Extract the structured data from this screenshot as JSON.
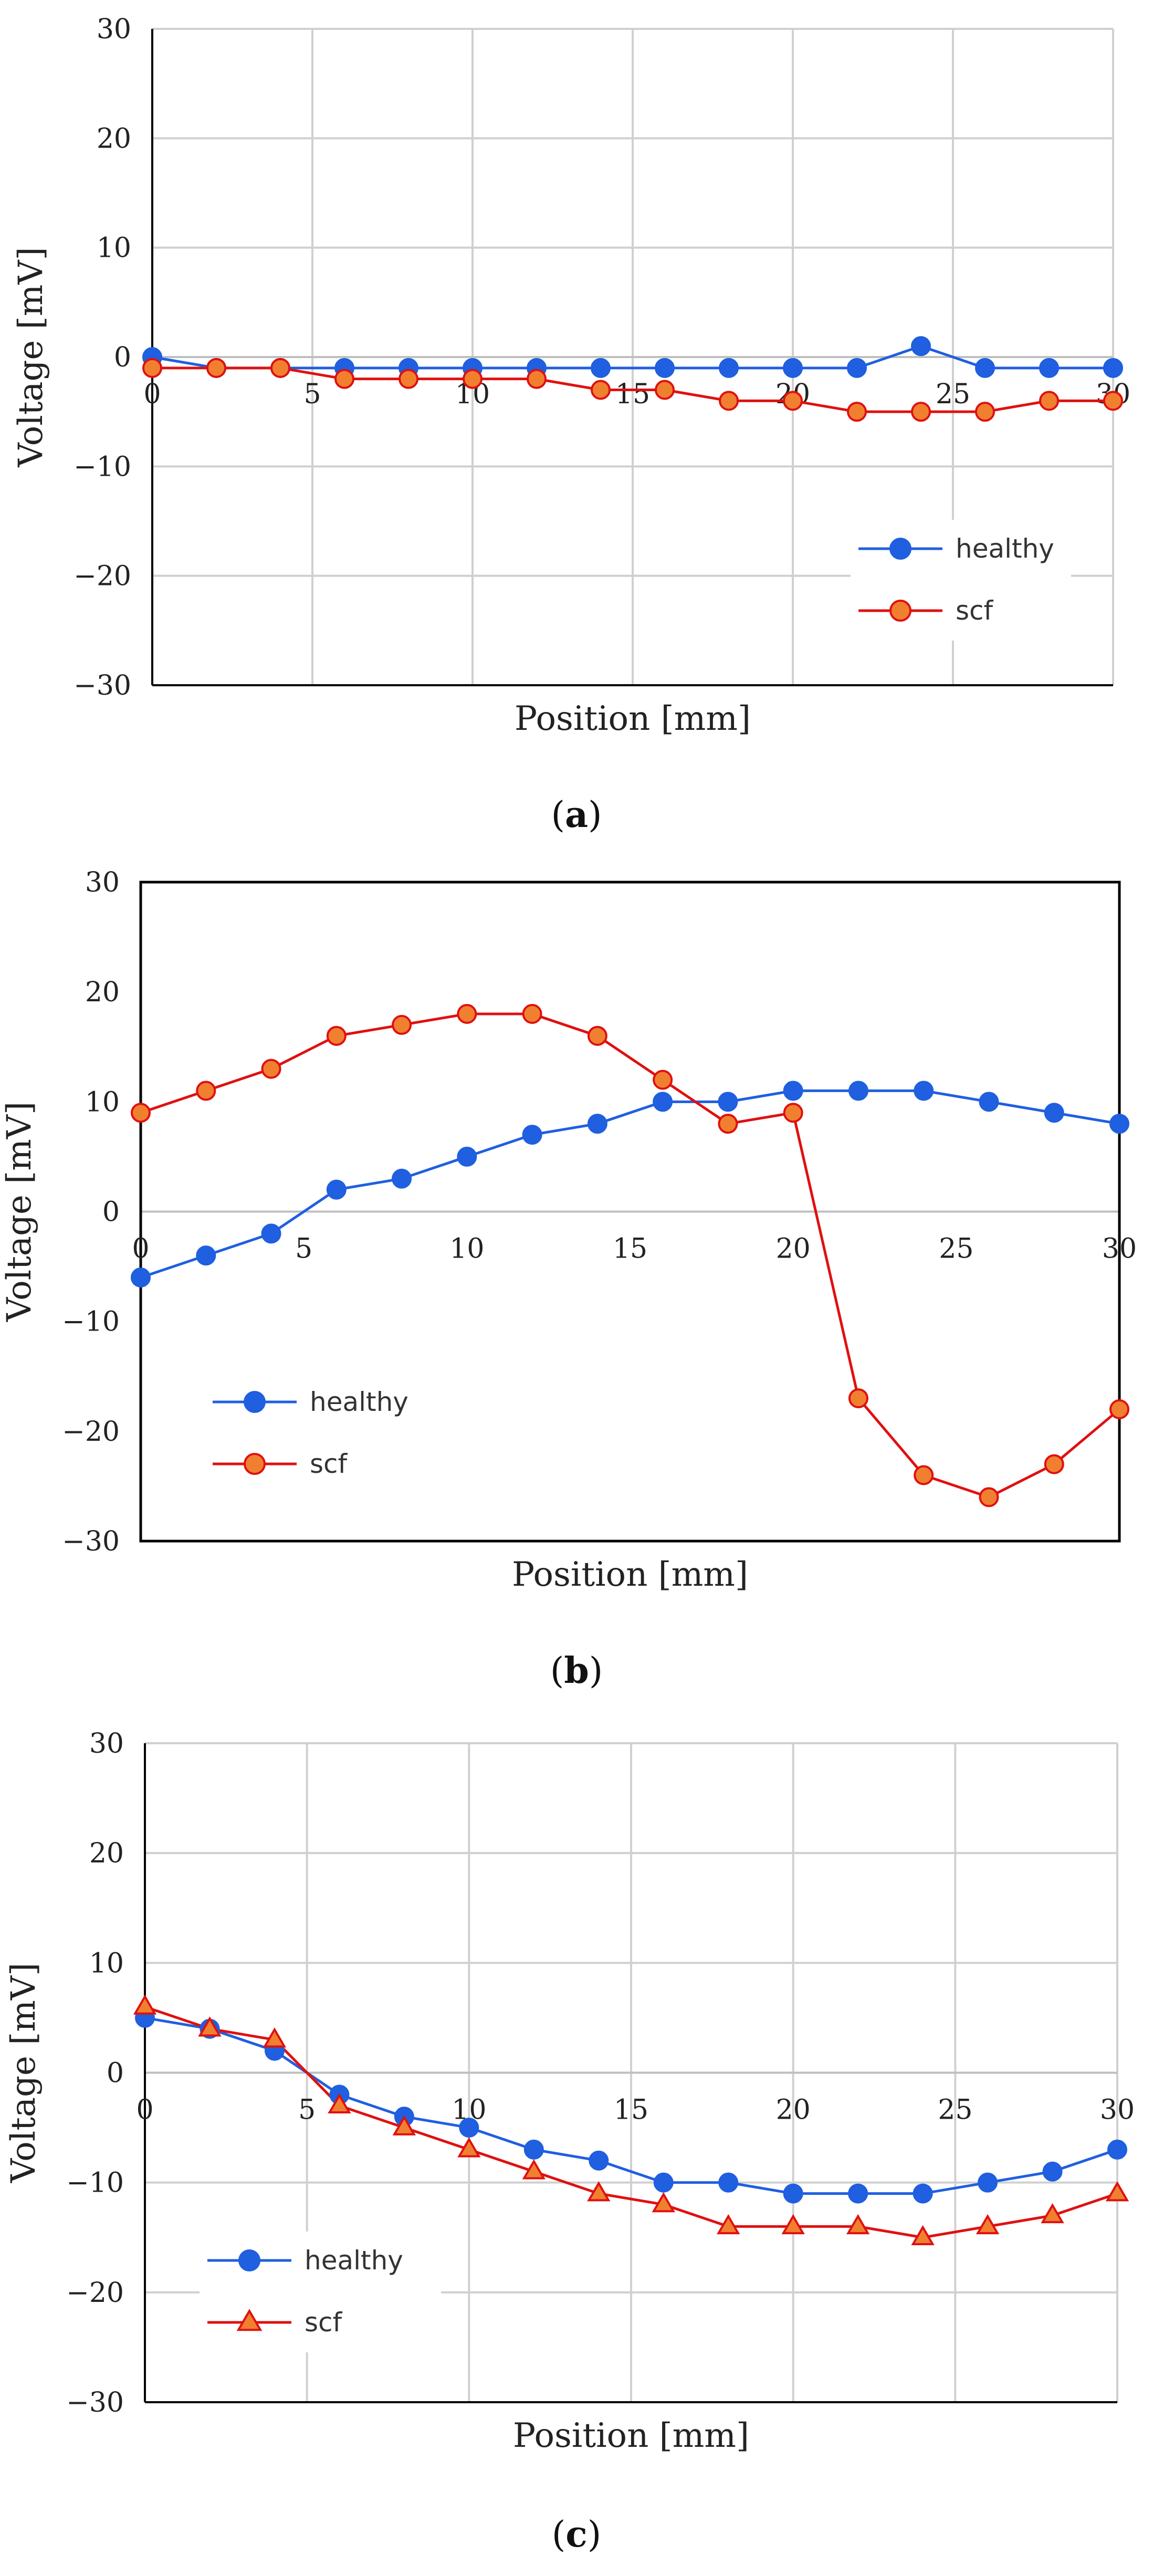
{
  "chart_data": [
    {
      "panel": "a",
      "caption": {
        "open": "(",
        "letter": "a",
        "close": ")"
      },
      "type": "line",
      "xlabel": "Position  [mm]",
      "ylabel": "Voltage [mV]",
      "xlim": [
        0,
        30
      ],
      "ylim": [
        -30,
        30
      ],
      "xticks": [
        0,
        5,
        10,
        15,
        20,
        25,
        30
      ],
      "yticks": [
        30,
        20,
        10,
        0,
        -10,
        -20,
        -30
      ],
      "ytick_labels": [
        "30",
        "20",
        "10",
        "0",
        "−10",
        "−20",
        "−30"
      ],
      "x_tick_labels_at_zero": true,
      "grid": true,
      "legend_position": "lower-right",
      "x": [
        0,
        2,
        4,
        6,
        8,
        10,
        12,
        14,
        16,
        18,
        20,
        22,
        24,
        26,
        28,
        30
      ],
      "series": [
        {
          "name": "healthy",
          "color": "#1f5fe0",
          "marker": "circle",
          "marker_fill": "#1f5fe0",
          "values": [
            0,
            -1,
            -1,
            -1,
            -1,
            -1,
            -1,
            -1,
            -1,
            -1,
            -1,
            -1,
            1,
            -1,
            -1,
            -1
          ]
        },
        {
          "name": "scf",
          "color": "#e01010",
          "marker": "circle",
          "marker_fill": "#f08030",
          "values": [
            -1,
            -1,
            -1,
            -2,
            -2,
            -2,
            -2,
            -3,
            -3,
            -4,
            -4,
            -5,
            -5,
            -5,
            -4,
            -4
          ]
        }
      ]
    },
    {
      "panel": "b",
      "caption": {
        "open": "(",
        "letter": "b",
        "close": ")"
      },
      "type": "line",
      "xlabel": "Position  [mm]",
      "ylabel": "Voltage [mV]",
      "xlim": [
        0,
        30
      ],
      "ylim": [
        -30,
        30
      ],
      "xticks": [
        0,
        5,
        10,
        15,
        20,
        25,
        30
      ],
      "yticks": [
        30,
        20,
        10,
        0,
        -10,
        -20,
        -30
      ],
      "ytick_labels": [
        "30",
        "20",
        "10",
        "0",
        "−10",
        "−20",
        "−30"
      ],
      "x_tick_labels_at_zero": true,
      "grid": false,
      "legend_position": "lower-left",
      "x": [
        0,
        2,
        4,
        6,
        8,
        10,
        12,
        14,
        16,
        18,
        20,
        22,
        24,
        26,
        28,
        30
      ],
      "series": [
        {
          "name": "healthy",
          "color": "#1f5fe0",
          "marker": "circle",
          "marker_fill": "#1f5fe0",
          "values": [
            -6,
            -4,
            -2,
            2,
            3,
            5,
            7,
            8,
            10,
            10,
            11,
            11,
            11,
            10,
            9,
            8
          ]
        },
        {
          "name": "scf",
          "color": "#e01010",
          "marker": "circle",
          "marker_fill": "#f08030",
          "values": [
            9,
            11,
            13,
            16,
            17,
            18,
            18,
            16,
            12,
            8,
            9,
            -17,
            -24,
            -26,
            -23,
            -18
          ]
        }
      ]
    },
    {
      "panel": "c",
      "caption": {
        "open": "(",
        "letter": "c",
        "close": ")"
      },
      "type": "line",
      "xlabel": "Position  [mm]",
      "ylabel": "Voltage [mV]",
      "xlim": [
        0,
        30
      ],
      "ylim": [
        -30,
        30
      ],
      "xticks": [
        0,
        5,
        10,
        15,
        20,
        25,
        30
      ],
      "yticks": [
        30,
        20,
        10,
        0,
        -10,
        -20,
        -30
      ],
      "ytick_labels": [
        "30",
        "20",
        "10",
        "0",
        "−10",
        "−20",
        "−30"
      ],
      "x_tick_labels_at_zero": true,
      "grid": true,
      "legend_position": "lower-left",
      "x": [
        0,
        2,
        4,
        6,
        8,
        10,
        12,
        14,
        16,
        18,
        20,
        22,
        24,
        26,
        28,
        30
      ],
      "series": [
        {
          "name": "healthy",
          "color": "#1f5fe0",
          "marker": "circle",
          "marker_fill": "#1f5fe0",
          "values": [
            5,
            4,
            2,
            -2,
            -4,
            -5,
            -7,
            -8,
            -10,
            -10,
            -11,
            -11,
            -11,
            -10,
            -9,
            -7
          ]
        },
        {
          "name": "scf",
          "color": "#e01010",
          "marker": "triangle",
          "marker_fill": "#f08030",
          "values": [
            6,
            4,
            3,
            -3,
            -5,
            -7,
            -9,
            -11,
            -12,
            -14,
            -14,
            -14,
            -15,
            -14,
            -13,
            -11
          ]
        }
      ]
    }
  ]
}
